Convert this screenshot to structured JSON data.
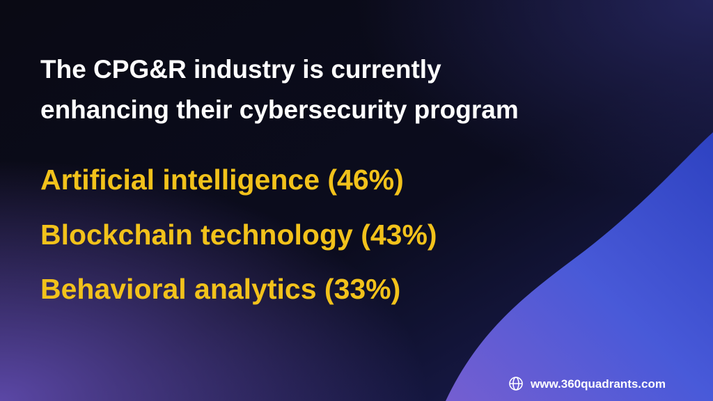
{
  "title": [
    "The CPG&R industry is currently",
    "enhancing their cybersecurity program"
  ],
  "items": [
    "Artificial intelligence (46%)",
    "Blockchain technology (43%)",
    "Behavioral analytics (33%)"
  ],
  "footer": {
    "url": "www.360quadrants.com"
  }
}
